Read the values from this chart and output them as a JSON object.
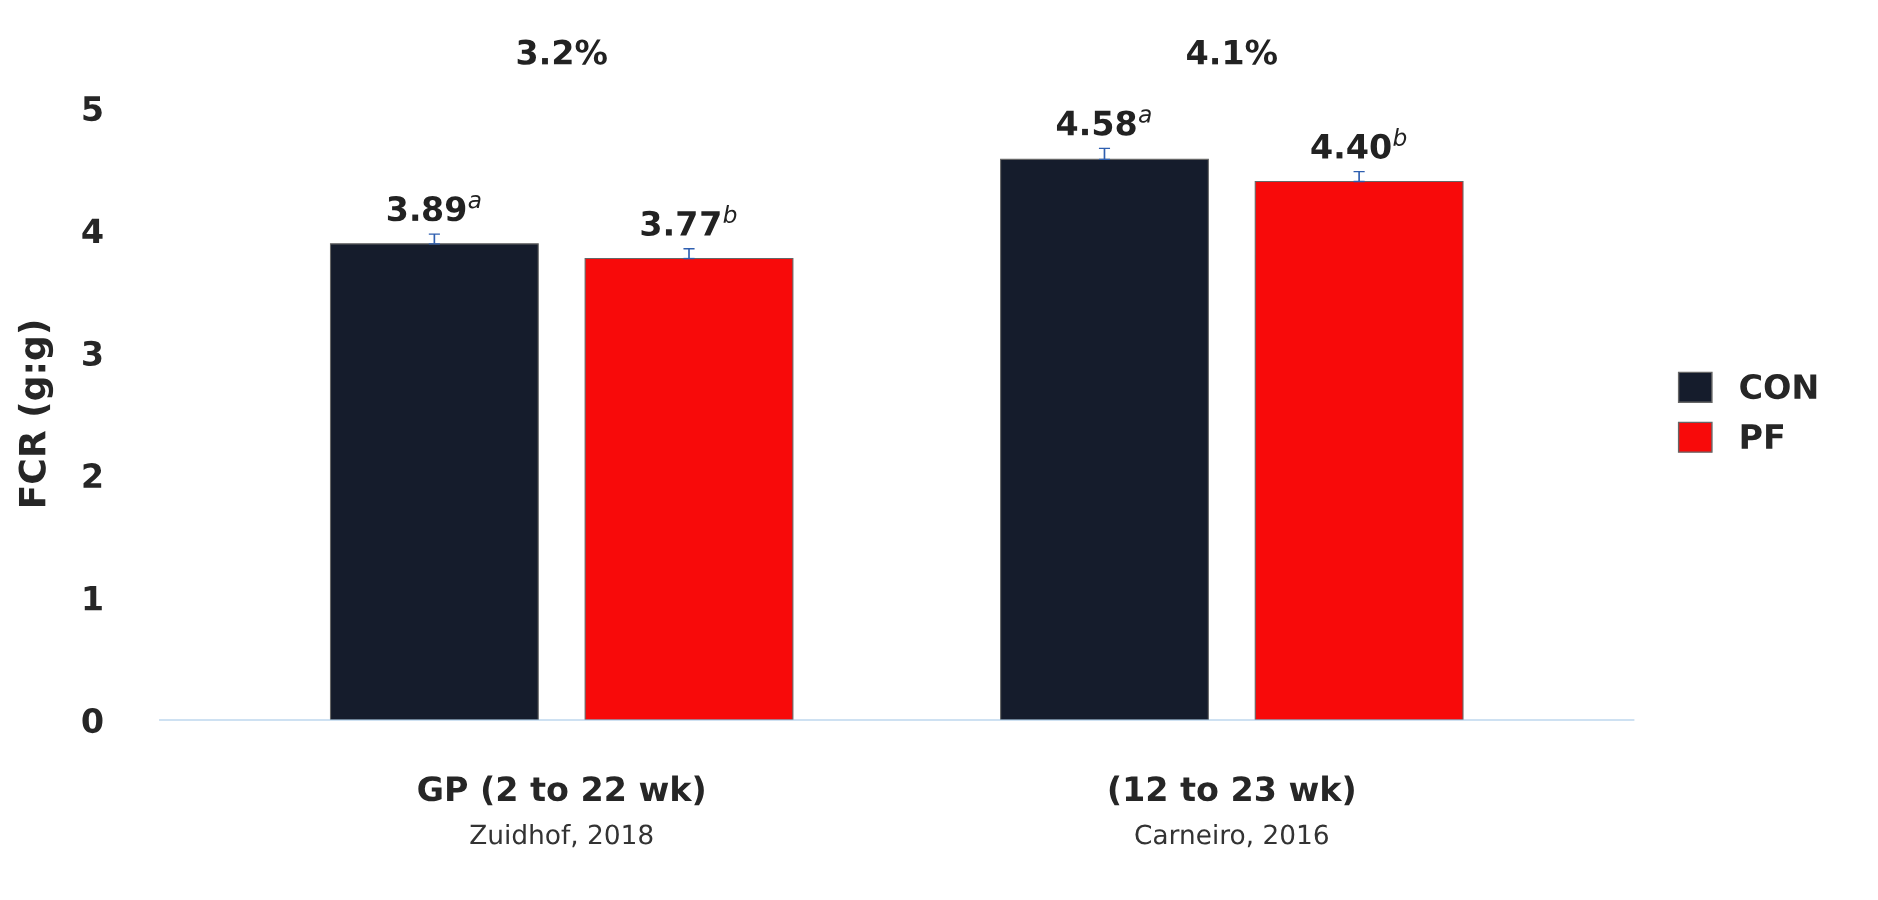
{
  "chart_data": {
    "type": "bar",
    "ylabel": "FCR (g:g)",
    "categories": [
      "GP (2 to 22 wk)",
      "(12 to 23 wk)"
    ],
    "series": [
      {
        "name": "CON",
        "color": "#151c2c",
        "values": [
          3.89,
          4.58
        ],
        "errors": [
          0.08,
          0.09
        ],
        "value_labels": [
          "3.89$^{a}$",
          "4.58$^{a}$"
        ]
      },
      {
        "name": "PF",
        "color": "#f80a0a",
        "values": [
          3.77,
          4.4
        ],
        "errors": [
          0.08,
          0.08
        ],
        "value_labels": [
          "3.77$^{b}$",
          "4.40$^{b}$"
        ]
      }
    ],
    "ylim": [
      0,
      5
    ],
    "yticks": [
      0,
      1,
      2,
      3,
      4,
      5
    ],
    "grid": false,
    "legend": "right",
    "annotations": [
      "3.2%",
      "4.1%",
      "Zuidhof, 2018",
      "Carneiro, 2016"
    ]
  }
}
